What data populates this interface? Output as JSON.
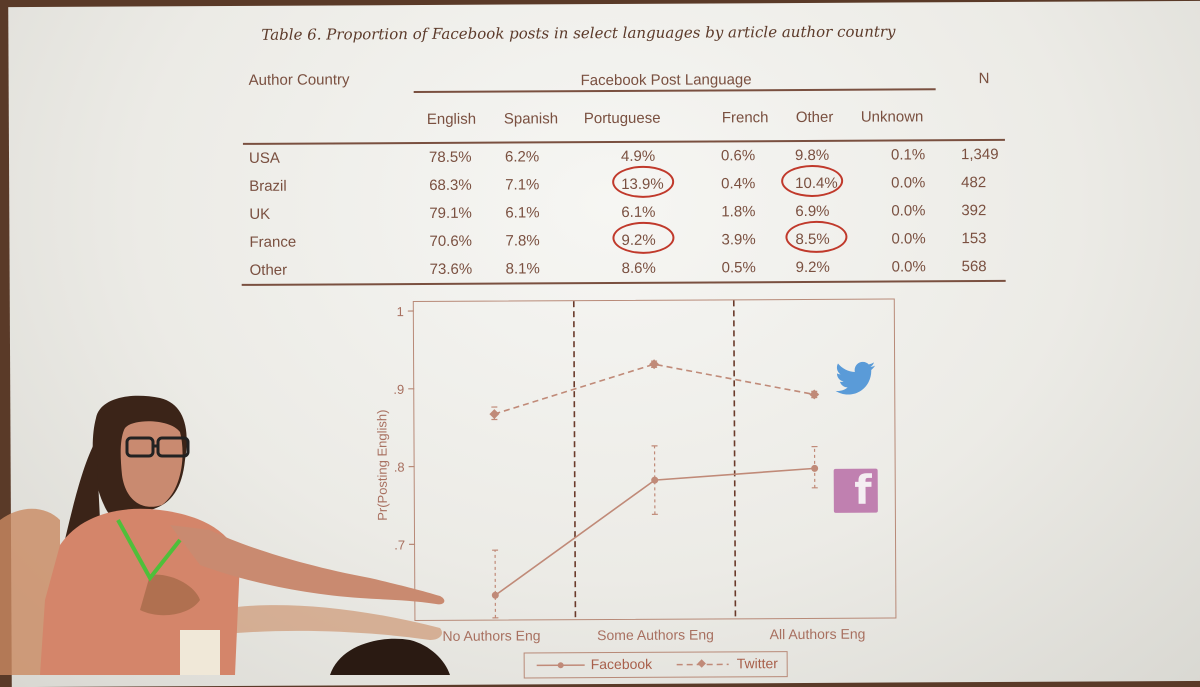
{
  "table": {
    "title": "Table 6. Proportion of Facebook posts in select languages by article author country",
    "row_header": "Author Country",
    "group_header": "Facebook Post Language",
    "n_header": "N",
    "columns": [
      "English",
      "Spanish",
      "Portuguese",
      "French",
      "Other",
      "Unknown"
    ],
    "rows": [
      {
        "country": "USA",
        "values": [
          "78.5%",
          "6.2%",
          "4.9%",
          "0.6%",
          "9.8%",
          "0.1%"
        ],
        "n": "1,349"
      },
      {
        "country": "Brazil",
        "values": [
          "68.3%",
          "7.1%",
          "13.9%",
          "0.4%",
          "10.4%",
          "0.0%"
        ],
        "n": "482"
      },
      {
        "country": "UK",
        "values": [
          "79.1%",
          "6.1%",
          "6.1%",
          "1.8%",
          "6.9%",
          "0.0%"
        ],
        "n": "392"
      },
      {
        "country": "France",
        "values": [
          "70.6%",
          "7.8%",
          "9.2%",
          "3.9%",
          "8.5%",
          "0.0%"
        ],
        "n": "153"
      },
      {
        "country": "Other",
        "values": [
          "73.6%",
          "8.1%",
          "8.6%",
          "0.5%",
          "9.2%",
          "0.0%"
        ],
        "n": "568"
      }
    ],
    "circled_color": "#c0392b"
  },
  "chart_data": {
    "type": "line",
    "ylabel": "Pr(Posting English)",
    "categories": [
      "No Authors Eng",
      "Some Authors Eng",
      "All Authors Eng"
    ],
    "y_ticks": [
      "1",
      ".9",
      ".8",
      ".7"
    ],
    "ylim": [
      0.64,
      1.0
    ],
    "series": [
      {
        "name": "Facebook",
        "values": [
          0.634,
          0.781,
          0.795
        ],
        "ci_low": [
          0.605,
          0.737,
          0.77
        ],
        "ci_high": [
          0.692,
          0.825,
          0.823
        ],
        "style": "solid",
        "color": "#c08a78"
      },
      {
        "name": "Twitter",
        "values": [
          0.867,
          0.93,
          0.89
        ],
        "ci_low": [
          0.86,
          0.926,
          0.886
        ],
        "ci_high": [
          0.876,
          0.934,
          0.894
        ],
        "style": "dashed",
        "color": "#c08a78"
      }
    ],
    "legend_position": "bottom",
    "grid": false
  },
  "icons": {
    "twitter": "twitter-bird-icon",
    "facebook": "facebook-logo-icon",
    "twitter_color": "#5a9bd8",
    "facebook_color": "#c080b0"
  }
}
